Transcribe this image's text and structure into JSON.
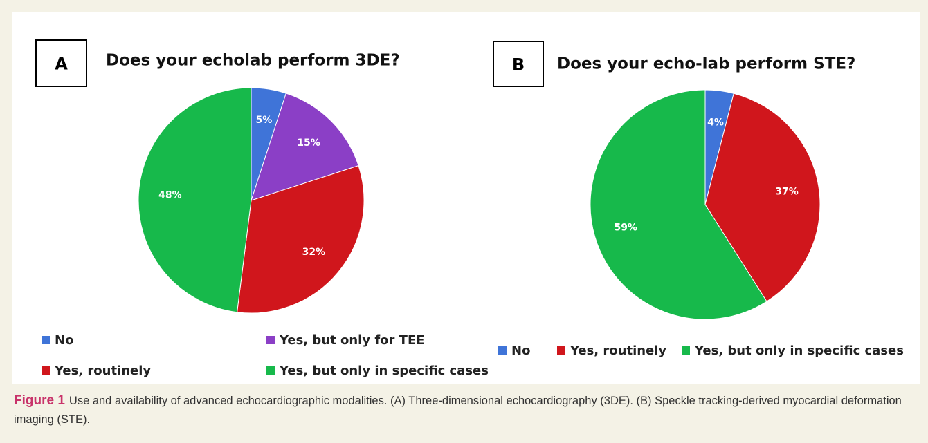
{
  "chart_data": [
    {
      "type": "pie",
      "panel": "A",
      "title": "Does your echolab perform 3DE?",
      "categories": [
        "No",
        "Yes, but only for TEE",
        "Yes, routinely",
        "Yes, but only in specific cases"
      ],
      "values": [
        5,
        15,
        32,
        48
      ],
      "value_labels": [
        "5%",
        "15%",
        "32%",
        "48%"
      ],
      "colors": [
        "#3f74d8",
        "#8b3fc6",
        "#d0161c",
        "#17b94b"
      ]
    },
    {
      "type": "pie",
      "panel": "B",
      "title": "Does your echo-lab perform STE?",
      "categories": [
        "No",
        "Yes, routinely",
        "Yes, but only in specific cases"
      ],
      "values": [
        4,
        37,
        59
      ],
      "value_labels": [
        "4%",
        "37%",
        "59%"
      ],
      "colors": [
        "#3f74d8",
        "#d0161c",
        "#17b94b"
      ]
    }
  ],
  "caption": {
    "label": "Figure 1",
    "text": "Use and availability of advanced echocardiographic modalities. (A) Three-dimensional echocardiography (3DE). (B) Speckle tracking-derived myocardial deformation imaging (STE)."
  }
}
